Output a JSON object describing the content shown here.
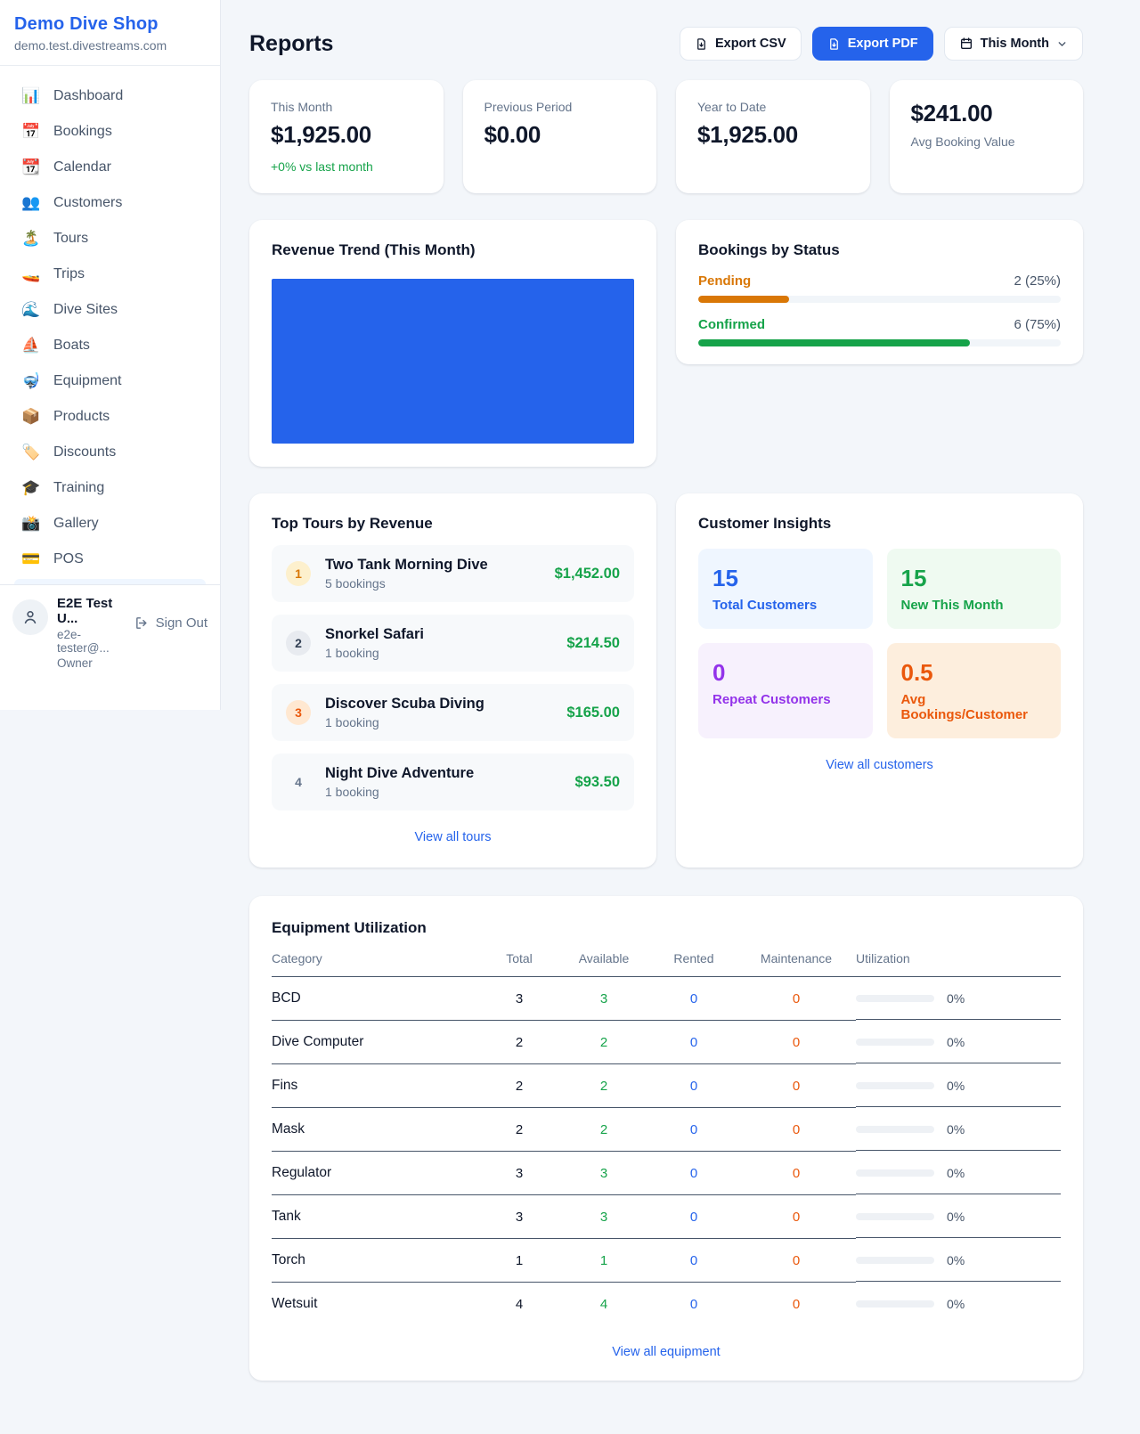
{
  "colors": {
    "accent_blue": "#2563eb",
    "green": "#16a34a",
    "amber": "#d97706",
    "orange": "#ea580c",
    "purple": "#9333ea",
    "page_bg": "#f3f6fa"
  },
  "sidebar": {
    "brand": "Demo Dive Shop",
    "domain": "demo.test.divestreams.com",
    "items": [
      {
        "icon": "📊",
        "label": "Dashboard"
      },
      {
        "icon": "📅",
        "label": "Bookings"
      },
      {
        "icon": "📆",
        "label": "Calendar"
      },
      {
        "icon": "👥",
        "label": "Customers"
      },
      {
        "icon": "🏝️",
        "label": "Tours"
      },
      {
        "icon": "🚤",
        "label": "Trips"
      },
      {
        "icon": "🌊",
        "label": "Dive Sites"
      },
      {
        "icon": "⛵",
        "label": "Boats"
      },
      {
        "icon": "🤿",
        "label": "Equipment"
      },
      {
        "icon": "📦",
        "label": "Products"
      },
      {
        "icon": "🏷️",
        "label": "Discounts"
      },
      {
        "icon": "🎓",
        "label": "Training"
      },
      {
        "icon": "📸",
        "label": "Gallery"
      },
      {
        "icon": "💳",
        "label": "POS"
      }
    ],
    "user": {
      "name": "E2E Test U...",
      "email": "e2e-tester@...",
      "role": "Owner",
      "sign_out": "Sign Out"
    }
  },
  "header": {
    "title": "Reports",
    "export_csv": "Export CSV",
    "export_pdf": "Export PDF",
    "period": "This Month"
  },
  "stats": [
    {
      "label": "This Month",
      "value": "$1,925.00",
      "delta": "+0% vs last month"
    },
    {
      "label": "Previous Period",
      "value": "$0.00"
    },
    {
      "label": "Year to Date",
      "value": "$1,925.00"
    },
    {
      "label": "Avg Booking Value",
      "value": "$241.00"
    }
  ],
  "revenue_trend": {
    "title": "Revenue Trend (This Month)",
    "fill_color": "#2563eb"
  },
  "bookings_by_status": {
    "title": "Bookings by Status",
    "rows": [
      {
        "label": "Pending",
        "count_text": "2 (25%)",
        "pct": "25%",
        "color": "#d97706"
      },
      {
        "label": "Confirmed",
        "count_text": "6 (75%)",
        "pct": "75%",
        "color": "#16a34a"
      }
    ]
  },
  "top_tours": {
    "title": "Top Tours by Revenue",
    "rows": [
      {
        "rank": "1",
        "name": "Two Tank Morning Dive",
        "bookings": "5 bookings",
        "revenue": "$1,452.00"
      },
      {
        "rank": "2",
        "name": "Snorkel Safari",
        "bookings": "1 booking",
        "revenue": "$214.50"
      },
      {
        "rank": "3",
        "name": "Discover Scuba Diving",
        "bookings": "1 booking",
        "revenue": "$165.00"
      },
      {
        "rank": "4",
        "name": "Night Dive Adventure",
        "bookings": "1 booking",
        "revenue": "$93.50"
      }
    ],
    "view_all": "View all tours"
  },
  "customer_insights": {
    "title": "Customer Insights",
    "tiles": [
      {
        "value": "15",
        "label": "Total Customers"
      },
      {
        "value": "15",
        "label": "New This Month"
      },
      {
        "value": "0",
        "label": "Repeat Customers"
      },
      {
        "value": "0.5",
        "label": "Avg Bookings/Customer"
      }
    ],
    "view_all": "View all customers"
  },
  "equipment": {
    "title": "Equipment Utilization",
    "headers": [
      "Category",
      "Total",
      "Available",
      "Rented",
      "Maintenance",
      "Utilization"
    ],
    "rows": [
      {
        "category": "BCD",
        "total": "3",
        "available": "3",
        "rented": "0",
        "maintenance": "0",
        "utilization": "0%"
      },
      {
        "category": "Dive Computer",
        "total": "2",
        "available": "2",
        "rented": "0",
        "maintenance": "0",
        "utilization": "0%"
      },
      {
        "category": "Fins",
        "total": "2",
        "available": "2",
        "rented": "0",
        "maintenance": "0",
        "utilization": "0%"
      },
      {
        "category": "Mask",
        "total": "2",
        "available": "2",
        "rented": "0",
        "maintenance": "0",
        "utilization": "0%"
      },
      {
        "category": "Regulator",
        "total": "3",
        "available": "3",
        "rented": "0",
        "maintenance": "0",
        "utilization": "0%"
      },
      {
        "category": "Tank",
        "total": "3",
        "available": "3",
        "rented": "0",
        "maintenance": "0",
        "utilization": "0%"
      },
      {
        "category": "Torch",
        "total": "1",
        "available": "1",
        "rented": "0",
        "maintenance": "0",
        "utilization": "0%"
      },
      {
        "category": "Wetsuit",
        "total": "4",
        "available": "4",
        "rented": "0",
        "maintenance": "0",
        "utilization": "0%"
      }
    ],
    "view_all": "View all equipment"
  }
}
